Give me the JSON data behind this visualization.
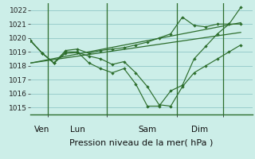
{
  "bg_color": "#cceee8",
  "grid_color": "#99cccc",
  "line_color": "#2d6e2d",
  "ylim": [
    1014.5,
    1022.5
  ],
  "yticks": [
    1015,
    1016,
    1017,
    1018,
    1019,
    1020,
    1021,
    1022
  ],
  "xlabel": "Pression niveau de la mer( hPa )",
  "x_day_labels": [
    {
      "label": "Ven",
      "x": 1
    },
    {
      "label": "Lun",
      "x": 4
    },
    {
      "label": "Sam",
      "x": 10
    },
    {
      "label": "Dim",
      "x": 14.5
    }
  ],
  "x_day_vlines": [
    1.5,
    6.5,
    12.5,
    16.5
  ],
  "xlim": [
    0,
    19
  ],
  "series_wavy1_x": [
    0,
    1,
    2,
    3,
    4,
    5,
    6,
    7,
    8,
    9,
    10,
    11,
    12,
    13,
    14,
    15,
    16,
    17,
    18
  ],
  "series_wavy1_y": [
    1019.8,
    1018.9,
    1018.2,
    1019.0,
    1019.0,
    1018.2,
    1017.8,
    1017.5,
    1017.8,
    1016.7,
    1015.1,
    1015.1,
    1016.2,
    1016.6,
    1018.5,
    1019.4,
    1020.3,
    1021.0,
    1021.0
  ],
  "series_wavy2_x": [
    0,
    1,
    2,
    3,
    4,
    5,
    6,
    7,
    8,
    9,
    10,
    11,
    12,
    13,
    14,
    15,
    16,
    17,
    18
  ],
  "series_wavy2_y": [
    1019.8,
    1018.9,
    1018.2,
    1019.1,
    1019.2,
    1018.9,
    1019.1,
    1019.2,
    1019.3,
    1019.5,
    1019.7,
    1020.0,
    1020.3,
    1021.5,
    1020.9,
    1020.8,
    1021.0,
    1021.0,
    1022.2
  ],
  "series_wavy3_x": [
    0,
    1,
    2,
    3,
    4,
    5,
    6,
    7,
    8,
    9,
    10,
    11,
    12,
    13,
    14,
    15,
    16,
    17,
    18
  ],
  "series_wavy3_y": [
    1019.8,
    1018.9,
    1018.2,
    1018.9,
    1018.95,
    1018.7,
    1018.5,
    1018.1,
    1018.3,
    1017.5,
    1016.5,
    1015.2,
    1015.1,
    1016.5,
    1017.5,
    1018.0,
    1018.5,
    1019.0,
    1019.5
  ],
  "series_line1_x": [
    0,
    18
  ],
  "series_line1_y": [
    1018.2,
    1021.1
  ],
  "series_line2_x": [
    0,
    18
  ],
  "series_line2_y": [
    1018.2,
    1020.4
  ],
  "tick_fontsize": 6.5,
  "xlabel_fontsize": 8,
  "day_label_fontsize": 7.5
}
